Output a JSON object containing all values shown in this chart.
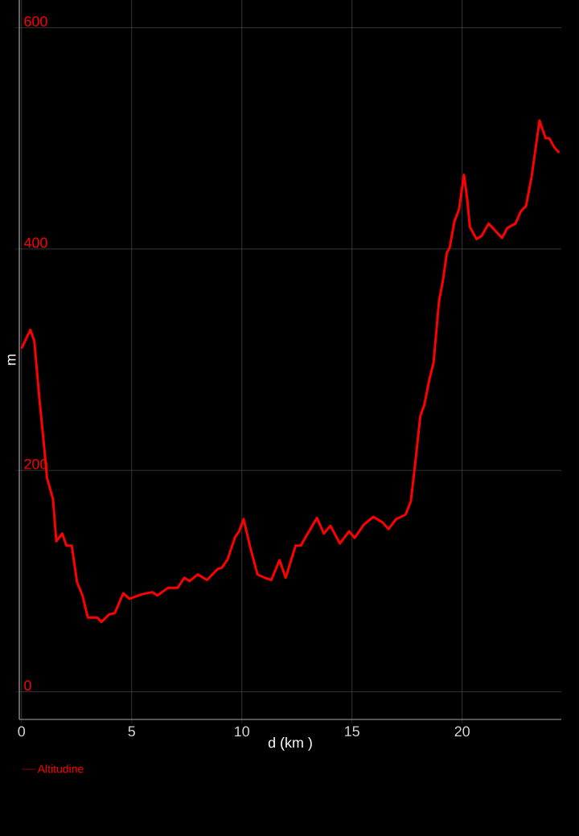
{
  "chart_data": {
    "type": "line",
    "xlabel": "d (km )",
    "ylabel": "m",
    "x": [
      0,
      0.4,
      0.58,
      0.82,
      1.0,
      1.16,
      1.43,
      1.58,
      1.85,
      2.04,
      2.28,
      2.52,
      2.77,
      3.01,
      3.44,
      3.62,
      3.99,
      4.23,
      4.62,
      4.9,
      5.45,
      5.93,
      6.17,
      6.66,
      7.09,
      7.39,
      7.63,
      8.0,
      8.42,
      8.91,
      9.09,
      9.34,
      9.7,
      9.88,
      10.08,
      10.4,
      10.71,
      11.04,
      11.34,
      11.71,
      11.99,
      12.44,
      12.68,
      12.93,
      13.41,
      13.72,
      14.02,
      14.45,
      14.87,
      15.12,
      15.54,
      15.97,
      16.39,
      16.66,
      17.0,
      17.43,
      17.67,
      17.85,
      18.1,
      18.28,
      18.52,
      18.7,
      18.95,
      19.13,
      19.31,
      19.43,
      19.65,
      19.86,
      20.08,
      20.23,
      20.35,
      20.65,
      20.89,
      21.2,
      21.81,
      22.05,
      22.42,
      22.66,
      22.9,
      23.15,
      23.51,
      23.79,
      23.96,
      24.18,
      24.4
    ],
    "series": [
      {
        "name": "Altitudine",
        "color": "#ff0000",
        "values": [
          310,
          327,
          317,
          263,
          227,
          193,
          174,
          136,
          143,
          132,
          132,
          99,
          87,
          67,
          67,
          63,
          70,
          71,
          89,
          84,
          88,
          90,
          87,
          94,
          94,
          103,
          100,
          106,
          101,
          111,
          112,
          119,
          140,
          145,
          156,
          129,
          106,
          103,
          101,
          119,
          103,
          132,
          132,
          141,
          157,
          143,
          150,
          134,
          145,
          139,
          151,
          158,
          153,
          147,
          156,
          160,
          172,
          203,
          249,
          259,
          283,
          297,
          353,
          372,
          397,
          401,
          425,
          436,
          467,
          445,
          420,
          409,
          412,
          423,
          410,
          419,
          423,
          434,
          439,
          465,
          516,
          500,
          500,
          492,
          487
        ]
      }
    ],
    "xlim": [
      -0.1,
      24.5
    ],
    "ylim": [
      -25,
      625
    ],
    "xticks": [
      0,
      5,
      10,
      15,
      20
    ],
    "yticks": [
      0,
      200,
      400,
      600
    ],
    "grid": true,
    "legend": "bottom left"
  }
}
